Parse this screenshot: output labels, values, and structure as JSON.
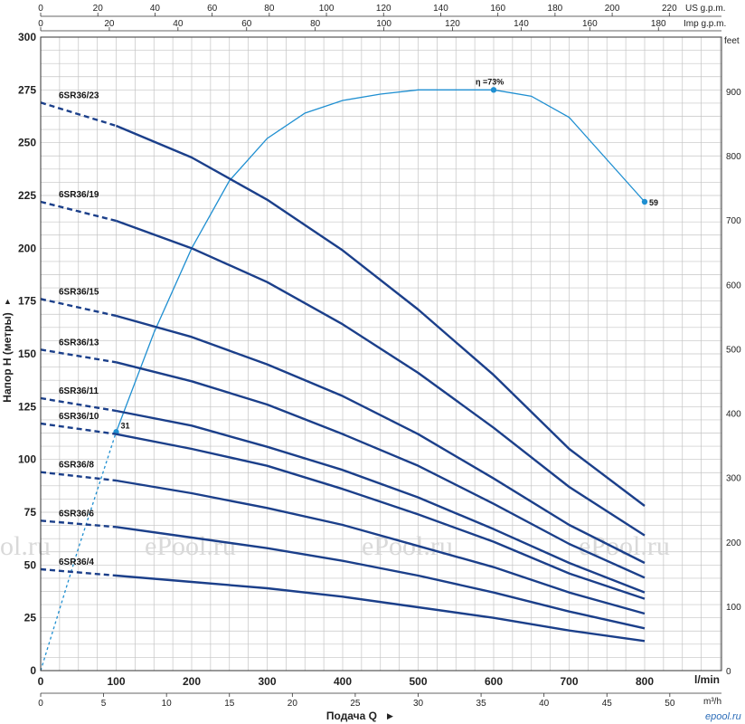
{
  "chart_data": {
    "type": "line",
    "xlabel": "Подача Q",
    "ylabel": "Напор H (метры)",
    "x_unit": "l/min",
    "xlim": [
      0,
      800
    ],
    "ylim": [
      0,
      300
    ],
    "x_ticks": [
      "0",
      "100",
      "200",
      "300",
      "400",
      "500",
      "600",
      "700",
      "800"
    ],
    "y_ticks": [
      "0",
      "25",
      "50",
      "75",
      "100",
      "125",
      "150",
      "175",
      "200",
      "225",
      "250",
      "275",
      "300"
    ],
    "secondary_axes": {
      "top_us": {
        "unit": "US g.p.m.",
        "ticks": [
          "0",
          "20",
          "40",
          "60",
          "80",
          "100",
          "120",
          "140",
          "160",
          "180",
          "200",
          "220"
        ]
      },
      "top_imp": {
        "unit": "Imp g.p.m.",
        "ticks": [
          "0",
          "20",
          "40",
          "60",
          "80",
          "100",
          "120",
          "140",
          "160",
          "180"
        ]
      },
      "right_feet": {
        "unit": "feet",
        "ticks": [
          "0",
          "100",
          "200",
          "300",
          "400",
          "500",
          "600",
          "700",
          "800",
          "900"
        ]
      },
      "bottom_m3h": {
        "unit": "m³/h",
        "ticks": [
          "0",
          "5",
          "10",
          "15",
          "20",
          "25",
          "30",
          "35",
          "40",
          "45",
          "50"
        ]
      }
    },
    "grid": true,
    "series": [
      {
        "name": "6SR36/23",
        "x": [
          0,
          100,
          200,
          300,
          400,
          500,
          600,
          700,
          800
        ],
        "y": [
          269,
          258,
          243,
          223,
          199,
          171,
          140,
          105,
          78
        ]
      },
      {
        "name": "6SR36/19",
        "x": [
          0,
          100,
          200,
          300,
          400,
          500,
          600,
          700,
          800
        ],
        "y": [
          222,
          213,
          200,
          184,
          164,
          141,
          115,
          87,
          64
        ]
      },
      {
        "name": "6SR36/15",
        "x": [
          0,
          100,
          200,
          300,
          400,
          500,
          600,
          700,
          800
        ],
        "y": [
          176,
          168,
          158,
          145,
          130,
          112,
          91,
          69,
          51
        ]
      },
      {
        "name": "6SR36/13",
        "x": [
          0,
          100,
          200,
          300,
          400,
          500,
          600,
          700,
          800
        ],
        "y": [
          152,
          146,
          137,
          126,
          112,
          97,
          79,
          60,
          44
        ]
      },
      {
        "name": "6SR36/11",
        "x": [
          0,
          100,
          200,
          300,
          400,
          500,
          600,
          700,
          800
        ],
        "y": [
          129,
          123,
          116,
          106,
          95,
          82,
          67,
          51,
          37
        ]
      },
      {
        "name": "6SR36/10",
        "x": [
          0,
          100,
          200,
          300,
          400,
          500,
          600,
          700,
          800
        ],
        "y": [
          117,
          112,
          105,
          97,
          86,
          74,
          61,
          46,
          34
        ]
      },
      {
        "name": "6SR36/8",
        "x": [
          0,
          100,
          200,
          300,
          400,
          500,
          600,
          700,
          800
        ],
        "y": [
          94,
          90,
          84,
          77,
          69,
          59,
          49,
          37,
          27
        ]
      },
      {
        "name": "6SR36/6",
        "x": [
          0,
          100,
          200,
          300,
          400,
          500,
          600,
          700,
          800
        ],
        "y": [
          71,
          68,
          63,
          58,
          52,
          45,
          37,
          28,
          20
        ]
      },
      {
        "name": "6SR36/4",
        "x": [
          0,
          100,
          200,
          300,
          400,
          500,
          600,
          700,
          800
        ],
        "y": [
          48,
          45,
          42,
          39,
          35,
          30,
          25,
          19,
          14
        ]
      }
    ],
    "efficiency_curve": {
      "x": [
        0,
        50,
        100,
        150,
        200,
        250,
        300,
        350,
        400,
        450,
        500,
        550,
        600,
        650,
        700,
        800
      ],
      "y": [
        0,
        58,
        113,
        160,
        200,
        232,
        252,
        264,
        270,
        273,
        275,
        275,
        275,
        272,
        262,
        222
      ],
      "points": [
        {
          "x": 100,
          "y": 113,
          "label": "31"
        },
        {
          "x": 600,
          "y": 275,
          "label": "η =73%"
        },
        {
          "x": 800,
          "y": 222,
          "label": "59"
        }
      ]
    },
    "watermark_text": [
      "ol.ru",
      "ePool.ru",
      "ePool.ru",
      "ePool.ru"
    ],
    "logo_text": "epool.ru"
  }
}
